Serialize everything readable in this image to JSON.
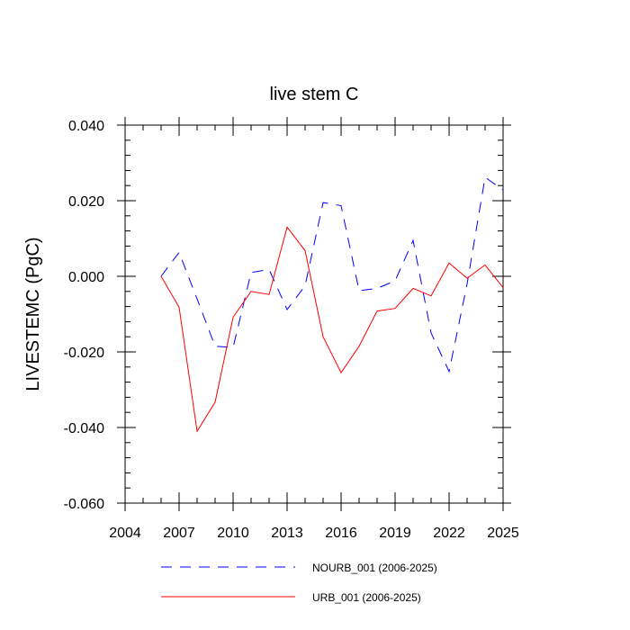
{
  "chart_data": {
    "type": "line",
    "title": "live stem C",
    "xlabel": "",
    "ylabel": "LIVESTEMC  (PgC)",
    "xlim": [
      2004,
      2025
    ],
    "ylim": [
      -0.06,
      0.04
    ],
    "x_ticks": [
      2004,
      2007,
      2010,
      2013,
      2016,
      2019,
      2022,
      2025
    ],
    "y_ticks": [
      -0.06,
      -0.04,
      -0.02,
      0.0,
      0.02,
      0.04
    ],
    "x_tick_labels": [
      "2004",
      "2007",
      "2010",
      "2013",
      "2016",
      "2019",
      "2022",
      "2025"
    ],
    "y_tick_labels": [
      "-0.060",
      "-0.040",
      "-0.020",
      "0.000",
      "0.020",
      "0.040"
    ],
    "grid": false,
    "legend_position": "bottom",
    "x": [
      2006,
      2007,
      2008,
      2009,
      2010,
      2011,
      2012,
      2013,
      2014,
      2015,
      2016,
      2017,
      2018,
      2019,
      2020,
      2021,
      2022,
      2023,
      2024,
      2025
    ],
    "series": [
      {
        "name": "NOURB_001 (2006-2025)",
        "color": "#0000ff",
        "dash": "dashed",
        "values": [
          0.0,
          0.0063,
          -0.006,
          -0.0185,
          -0.0188,
          0.001,
          0.0018,
          -0.0088,
          -0.0025,
          0.0195,
          0.0187,
          -0.0038,
          -0.0032,
          -0.0012,
          0.0095,
          -0.015,
          -0.0252,
          -0.002,
          0.0262,
          0.0228
        ]
      },
      {
        "name": "URB_001 (2006-2025)",
        "color": "#ff0000",
        "dash": "solid",
        "values": [
          0.0,
          -0.0082,
          -0.041,
          -0.0333,
          -0.0108,
          -0.004,
          -0.0048,
          0.013,
          0.0068,
          -0.016,
          -0.0255,
          -0.0185,
          -0.0092,
          -0.0085,
          -0.0032,
          -0.0052,
          0.0035,
          -0.0005,
          0.003,
          -0.003
        ]
      }
    ]
  }
}
